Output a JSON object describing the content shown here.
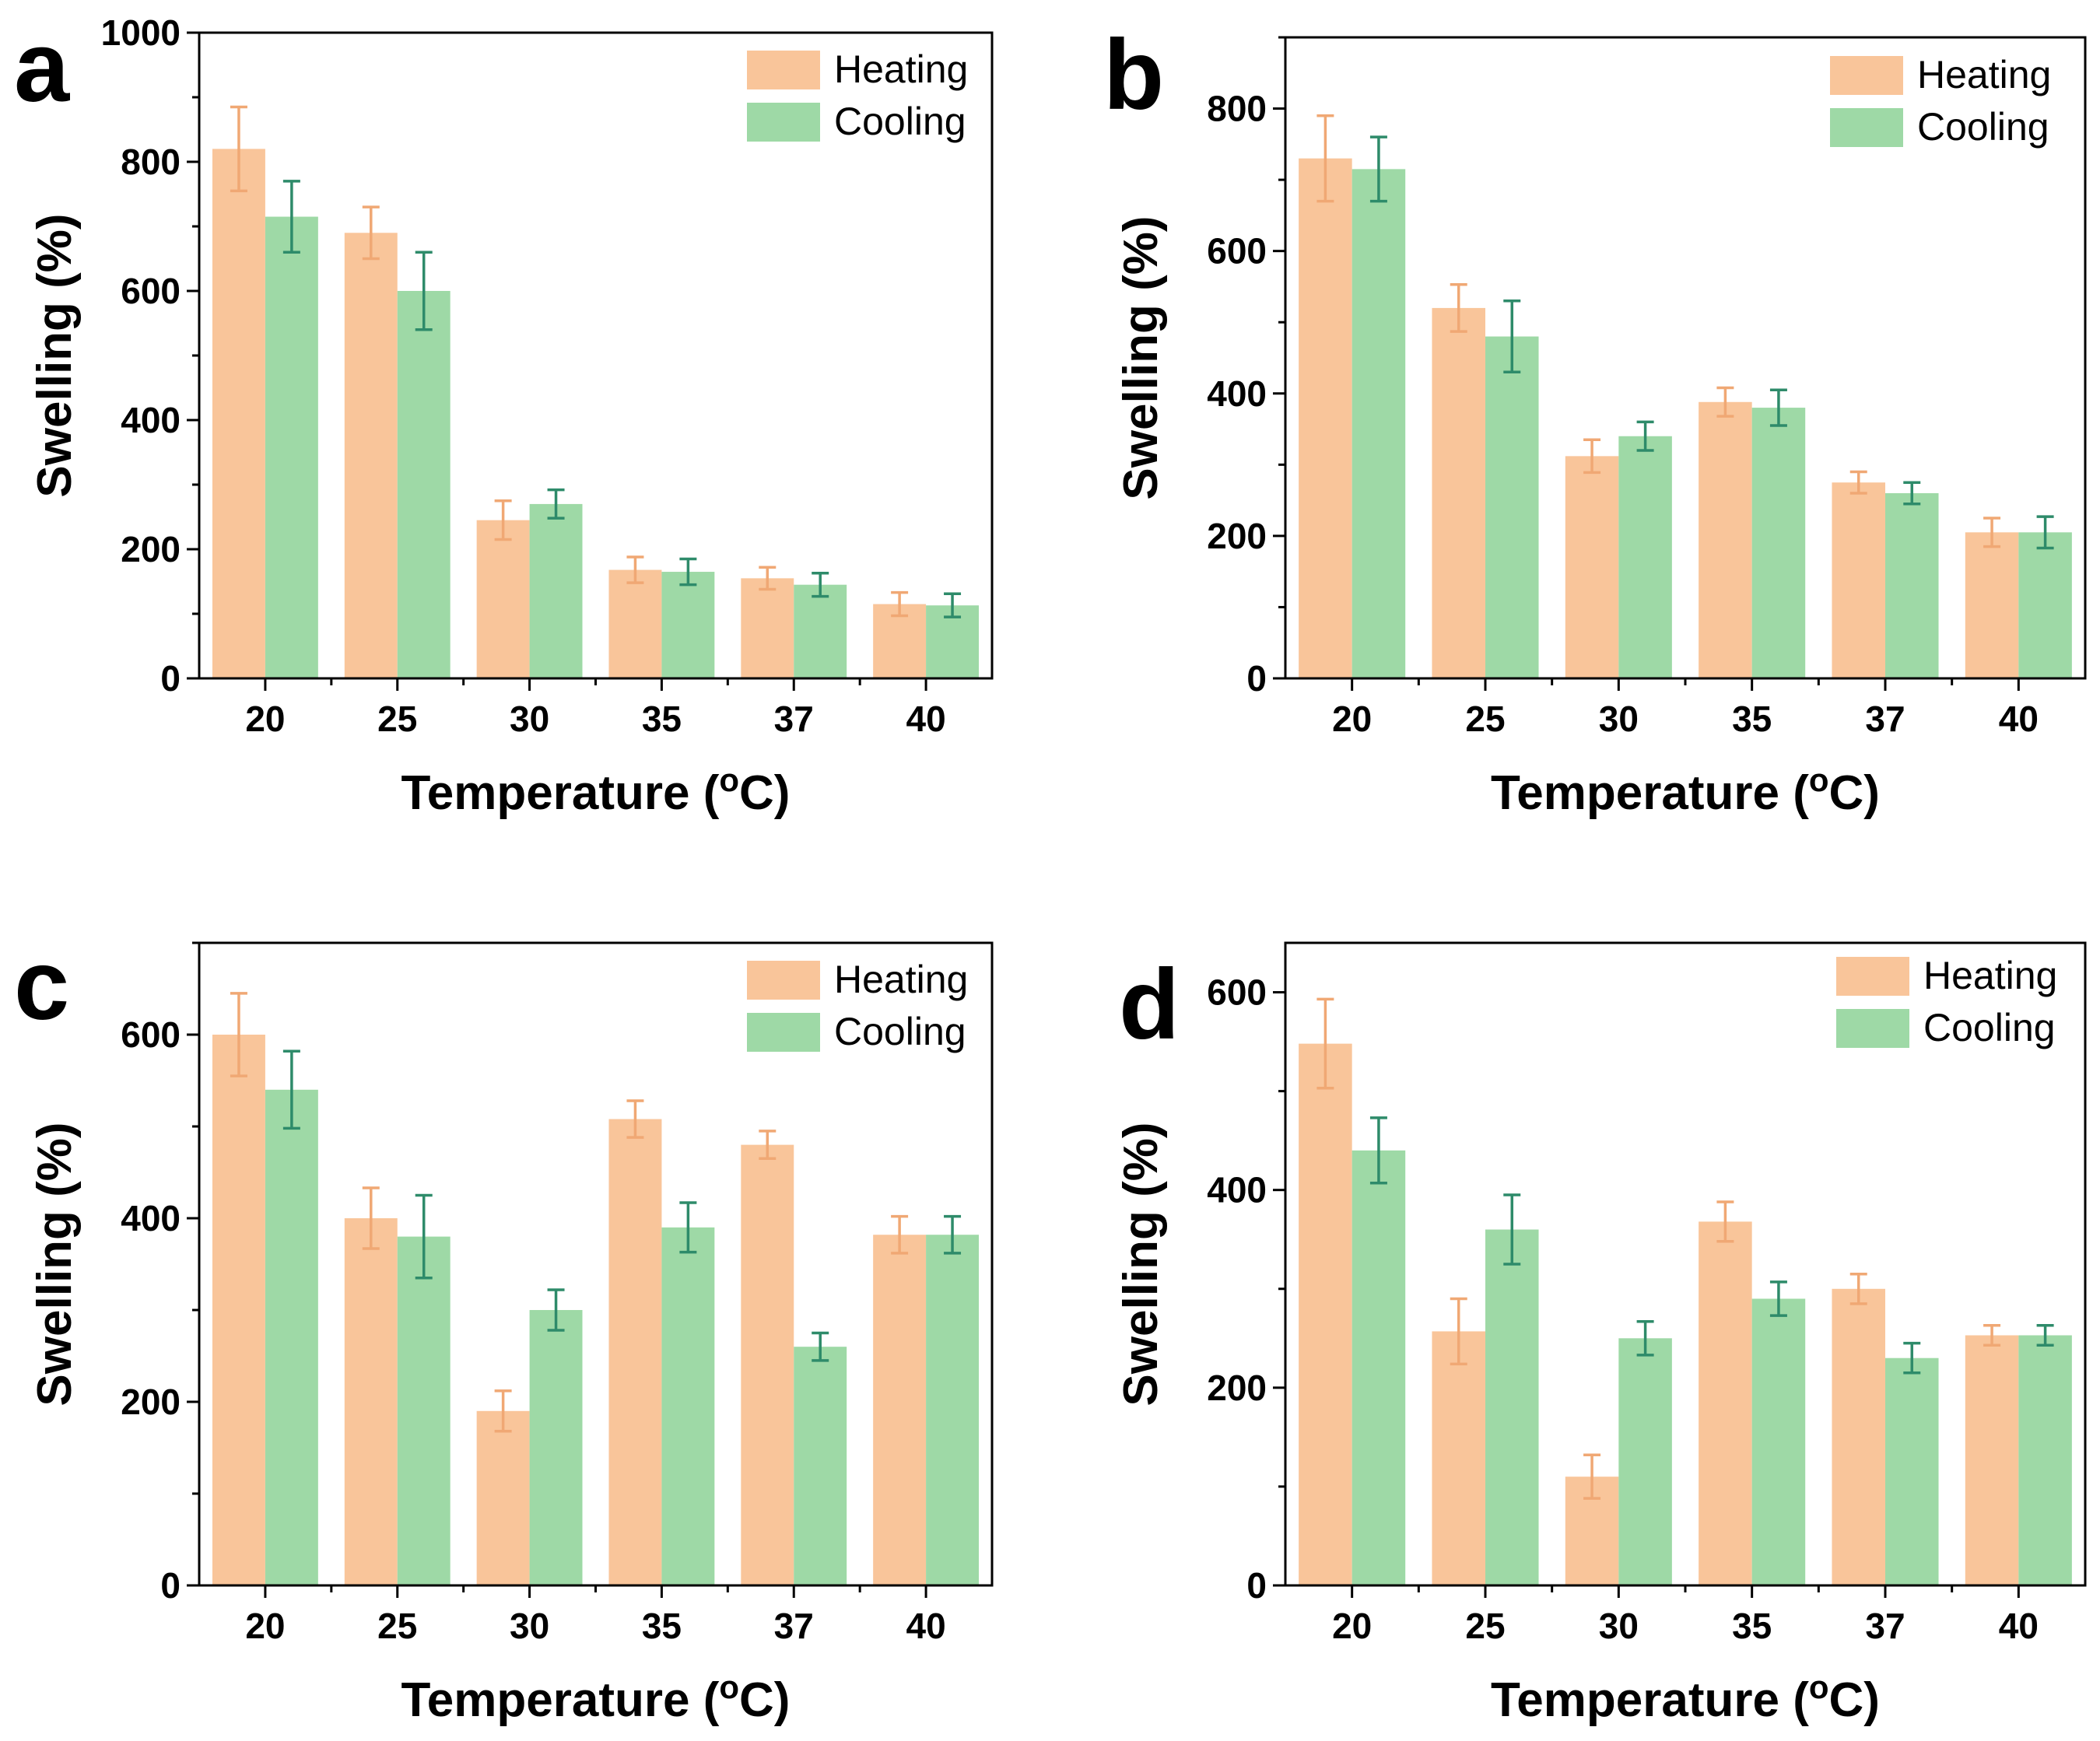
{
  "legend": {
    "heating": "Heating",
    "cooling": "Cooling"
  },
  "colors": {
    "heating": "#F9C59A",
    "cooling": "#9ED9A6",
    "heating_err": "#F0A874",
    "cooling_err": "#2E8B6A"
  },
  "chart_data": [
    {
      "type": "bar",
      "panel": "a",
      "categories": [
        "20",
        "25",
        "30",
        "35",
        "37",
        "40"
      ],
      "xlabel": "Temperature (°C)",
      "ylabel": "Swelling (%)",
      "ylim": [
        0,
        1000
      ],
      "yticks": [
        "0",
        "200",
        "400",
        "600",
        "800",
        "1000"
      ],
      "series": [
        {
          "name": "Heating",
          "values": [
            820,
            690,
            245,
            168,
            155,
            115
          ],
          "errors": [
            65,
            40,
            30,
            20,
            17,
            18
          ]
        },
        {
          "name": "Cooling",
          "values": [
            715,
            600,
            270,
            165,
            145,
            113
          ],
          "errors": [
            55,
            60,
            22,
            20,
            18,
            18
          ]
        }
      ]
    },
    {
      "type": "bar",
      "panel": "b",
      "categories": [
        "20",
        "25",
        "30",
        "35",
        "37",
        "40"
      ],
      "xlabel": "Temperature (°C)",
      "ylabel": "Swelling (%)",
      "ylim": [
        0,
        900
      ],
      "yticks": [
        "0",
        "200",
        "400",
        "600",
        "800"
      ],
      "series": [
        {
          "name": "Heating",
          "values": [
            730,
            520,
            312,
            388,
            275,
            205
          ],
          "errors": [
            60,
            33,
            23,
            20,
            15,
            20
          ]
        },
        {
          "name": "Cooling",
          "values": [
            715,
            480,
            340,
            380,
            260,
            205
          ],
          "errors": [
            45,
            50,
            20,
            25,
            15,
            22
          ]
        }
      ]
    },
    {
      "type": "bar",
      "panel": "c",
      "categories": [
        "20",
        "25",
        "30",
        "35",
        "37",
        "40"
      ],
      "xlabel": "Temperature (°C)",
      "ylabel": "Swelling (%)",
      "ylim": [
        0,
        700
      ],
      "yticks": [
        "0",
        "200",
        "400",
        "600"
      ],
      "series": [
        {
          "name": "Heating",
          "values": [
            600,
            400,
            190,
            508,
            480,
            382
          ],
          "errors": [
            45,
            33,
            22,
            20,
            15,
            20
          ]
        },
        {
          "name": "Cooling",
          "values": [
            540,
            380,
            300,
            390,
            260,
            382
          ],
          "errors": [
            42,
            45,
            22,
            27,
            15,
            20
          ]
        }
      ]
    },
    {
      "type": "bar",
      "panel": "d",
      "categories": [
        "20",
        "25",
        "30",
        "35",
        "37",
        "40"
      ],
      "xlabel": "Temperature (°C)",
      "ylabel": "Swelling (%)",
      "ylim": [
        0,
        650
      ],
      "yticks": [
        "0",
        "200",
        "400",
        "600"
      ],
      "series": [
        {
          "name": "Heating",
          "values": [
            548,
            257,
            110,
            368,
            300,
            253
          ],
          "errors": [
            45,
            33,
            22,
            20,
            15,
            10
          ]
        },
        {
          "name": "Cooling",
          "values": [
            440,
            360,
            250,
            290,
            230,
            253
          ],
          "errors": [
            33,
            35,
            17,
            17,
            15,
            10
          ]
        }
      ]
    }
  ]
}
